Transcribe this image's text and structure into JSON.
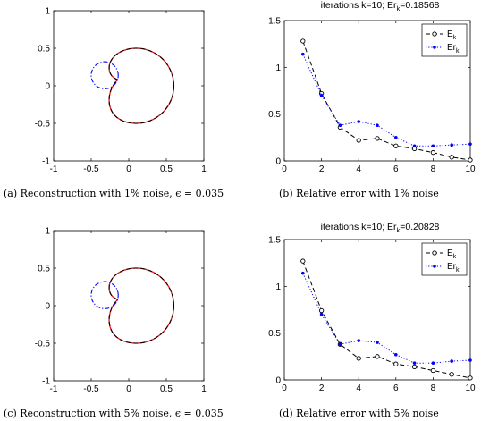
{
  "chart_data": [
    {
      "id": "a",
      "type": "line",
      "caption": "(a) Reconstruction with 1% noise, ϵ = 0.035",
      "xlim": [
        -1,
        1
      ],
      "ylim": [
        -1,
        1
      ],
      "xticks": [
        -1,
        -0.5,
        0,
        0.5,
        1
      ],
      "yticks": [
        -1,
        -0.5,
        0,
        0.5,
        1
      ],
      "xtick_labels": [
        "-1",
        "-0.5",
        "0",
        "0.5",
        "1"
      ],
      "ytick_labels": [
        "-1",
        "-0.5",
        "0",
        "0.5",
        "1"
      ],
      "series": [
        {
          "style": "solid",
          "color": "#e41a1c",
          "role": "exact",
          "shape": "kite",
          "cx": 0.1,
          "cy": 0.0,
          "r": 0.5,
          "notch_x": -0.15,
          "notch_y": 0.08
        },
        {
          "style": "dashed",
          "color": "#000000",
          "role": "reconstruction",
          "shape": "kite",
          "cx": 0.1,
          "cy": 0.0,
          "r": 0.5,
          "notch_x": -0.15,
          "notch_y": 0.08
        },
        {
          "style": "dashdot",
          "color": "#0000ff",
          "role": "initial",
          "shape": "circle",
          "cx": -0.32,
          "cy": 0.14,
          "r": 0.18
        }
      ]
    },
    {
      "id": "b",
      "type": "line",
      "title": "iterations k=10; Er",
      "title_sub": "k",
      "title_value": "=0.18568",
      "caption": "(b) Relative error with 1% noise",
      "xlim": [
        0,
        10
      ],
      "ylim": [
        0,
        1.5
      ],
      "xticks": [
        0,
        2,
        4,
        6,
        8,
        10
      ],
      "yticks": [
        0,
        0.5,
        1,
        1.5
      ],
      "xtick_labels": [
        "0",
        "2",
        "4",
        "6",
        "8",
        "10"
      ],
      "ytick_labels": [
        "0",
        "0.5",
        "1",
        "1.5"
      ],
      "x": [
        1,
        2,
        3,
        4,
        5,
        6,
        7,
        8,
        9,
        10
      ],
      "series": [
        {
          "name": "E",
          "sub": "k",
          "color": "#000000",
          "style": "dashed",
          "marker": "open-circle",
          "values": [
            1.28,
            0.72,
            0.36,
            0.22,
            0.24,
            0.16,
            0.13,
            0.09,
            0.04,
            0.01
          ]
        },
        {
          "name": "Er",
          "sub": "k",
          "color": "#0000ff",
          "style": "dotted",
          "marker": "filled-dot",
          "values": [
            1.14,
            0.7,
            0.38,
            0.42,
            0.38,
            0.25,
            0.16,
            0.16,
            0.17,
            0.18
          ]
        }
      ],
      "legend": "top-right"
    },
    {
      "id": "c",
      "type": "line",
      "caption": "(c) Reconstruction with 5% noise, ϵ = 0.035",
      "xlim": [
        -1,
        1
      ],
      "ylim": [
        -1,
        1
      ],
      "xticks": [
        -1,
        -0.5,
        0,
        0.5,
        1
      ],
      "yticks": [
        -1,
        -0.5,
        0,
        0.5,
        1
      ],
      "xtick_labels": [
        "-1",
        "-0.5",
        "0",
        "0.5",
        "1"
      ],
      "ytick_labels": [
        "-1",
        "-0.5",
        "0",
        "0.5",
        "1"
      ],
      "series": [
        {
          "style": "solid",
          "color": "#e41a1c",
          "role": "exact",
          "shape": "kite",
          "cx": 0.1,
          "cy": 0.0,
          "r": 0.5,
          "notch_x": -0.15,
          "notch_y": 0.08
        },
        {
          "style": "dashed",
          "color": "#000000",
          "role": "reconstruction",
          "shape": "kite",
          "cx": 0.1,
          "cy": 0.0,
          "r": 0.5,
          "notch_x": -0.15,
          "notch_y": 0.08
        },
        {
          "style": "dashdot",
          "color": "#0000ff",
          "role": "initial",
          "shape": "circle",
          "cx": -0.32,
          "cy": 0.14,
          "r": 0.18
        }
      ]
    },
    {
      "id": "d",
      "type": "line",
      "title": "iterations k=10; Er",
      "title_sub": "k",
      "title_value": "=0.20828",
      "caption": "(d) Relative error with 5% noise",
      "xlim": [
        0,
        10
      ],
      "ylim": [
        0,
        1.5
      ],
      "xticks": [
        0,
        2,
        4,
        6,
        8,
        10
      ],
      "yticks": [
        0,
        0.5,
        1,
        1.5
      ],
      "xtick_labels": [
        "0",
        "2",
        "4",
        "6",
        "8",
        "10"
      ],
      "ytick_labels": [
        "0",
        "0.5",
        "1",
        "1.5"
      ],
      "x": [
        1,
        2,
        3,
        4,
        5,
        6,
        7,
        8,
        9,
        10
      ],
      "series": [
        {
          "name": "E",
          "sub": "k",
          "color": "#000000",
          "style": "dashed",
          "marker": "open-circle",
          "values": [
            1.27,
            0.74,
            0.38,
            0.23,
            0.25,
            0.17,
            0.14,
            0.1,
            0.06,
            0.02
          ]
        },
        {
          "name": "Er",
          "sub": "k",
          "color": "#0000ff",
          "style": "dotted",
          "marker": "filled-dot",
          "values": [
            1.14,
            0.7,
            0.38,
            0.42,
            0.4,
            0.27,
            0.18,
            0.18,
            0.2,
            0.21
          ]
        }
      ],
      "legend": "top-right"
    }
  ]
}
